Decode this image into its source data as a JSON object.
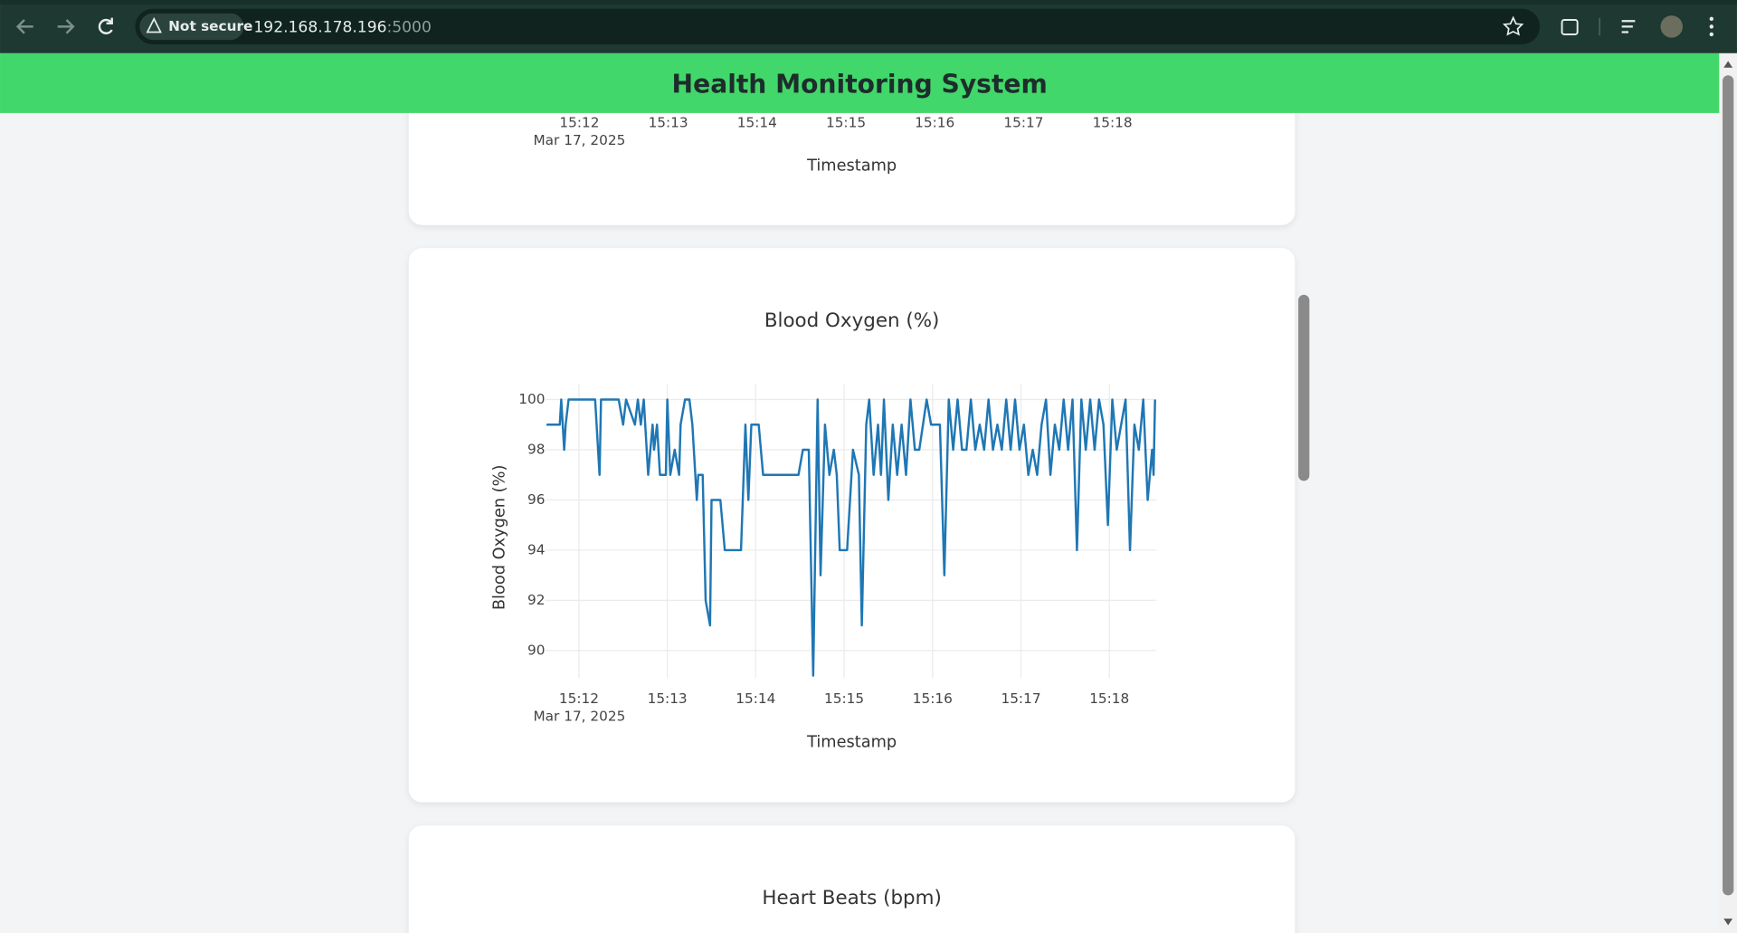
{
  "browser": {
    "security": "Not secure",
    "url_host": "192.168.178.196",
    "url_port": ":5000"
  },
  "header": {
    "title": "Health Monitoring System"
  },
  "previous_chart": {
    "xtick_labels": [
      "15:12",
      "15:13",
      "15:14",
      "15:15",
      "15:16",
      "15:17",
      "15:18"
    ],
    "x_date_label": "Mar 17, 2025",
    "xlabel": "Timestamp"
  },
  "chart_data": {
    "type": "line",
    "title": "Blood Oxygen (%)",
    "xlabel": "Timestamp",
    "ylabel": "Blood Oxygen (%)",
    "color": "#1f77b4",
    "grid": true,
    "x": [
      "2025-03-17 15:11:38",
      "2025-03-17 15:11:47",
      "2025-03-17 15:11:48",
      "2025-03-17 15:11:50",
      "2025-03-17 15:11:51",
      "2025-03-17 15:11:53",
      "2025-03-17 15:12:11",
      "2025-03-17 15:12:14",
      "2025-03-17 15:12:15",
      "2025-03-17 15:12:27",
      "2025-03-17 15:12:30",
      "2025-03-17 15:12:32",
      "2025-03-17 15:12:38",
      "2025-03-17 15:12:40",
      "2025-03-17 15:12:42",
      "2025-03-17 15:12:44",
      "2025-03-17 15:12:47",
      "2025-03-17 15:12:50",
      "2025-03-17 15:12:51",
      "2025-03-17 15:12:53",
      "2025-03-17 15:12:55",
      "2025-03-17 15:12:59",
      "2025-03-17 15:13:00",
      "2025-03-17 15:13:02",
      "2025-03-17 15:13:05",
      "2025-03-17 15:13:08",
      "2025-03-17 15:13:09",
      "2025-03-17 15:13:12",
      "2025-03-17 15:13:15",
      "2025-03-17 15:13:17",
      "2025-03-17 15:13:20",
      "2025-03-17 15:13:21",
      "2025-03-17 15:13:24",
      "2025-03-17 15:13:26",
      "2025-03-17 15:13:29",
      "2025-03-17 15:13:30",
      "2025-03-17 15:13:36",
      "2025-03-17 15:13:39",
      "2025-03-17 15:13:50",
      "2025-03-17 15:13:53",
      "2025-03-17 15:13:55",
      "2025-03-17 15:13:57",
      "2025-03-17 15:14:02",
      "2025-03-17 15:14:05",
      "2025-03-17 15:14:29",
      "2025-03-17 15:14:32",
      "2025-03-17 15:14:36",
      "2025-03-17 15:14:39",
      "2025-03-17 15:14:42",
      "2025-03-17 15:14:44",
      "2025-03-17 15:14:47",
      "2025-03-17 15:14:50",
      "2025-03-17 15:14:53",
      "2025-03-17 15:14:55",
      "2025-03-17 15:14:57",
      "2025-03-17 15:15:02",
      "2025-03-17 15:15:04",
      "2025-03-17 15:15:06",
      "2025-03-17 15:15:10",
      "2025-03-17 15:15:12",
      "2025-03-17 15:15:15",
      "2025-03-17 15:15:17",
      "2025-03-17 15:15:20",
      "2025-03-17 15:15:23",
      "2025-03-17 15:15:25",
      "2025-03-17 15:15:27",
      "2025-03-17 15:15:30",
      "2025-03-17 15:15:33",
      "2025-03-17 15:15:36",
      "2025-03-17 15:15:39",
      "2025-03-17 15:15:42",
      "2025-03-17 15:15:45",
      "2025-03-17 15:15:48",
      "2025-03-17 15:15:51",
      "2025-03-17 15:15:56",
      "2025-03-17 15:15:59",
      "2025-03-17 15:16:05",
      "2025-03-17 15:16:08",
      "2025-03-17 15:16:11",
      "2025-03-17 15:16:14",
      "2025-03-17 15:16:17",
      "2025-03-17 15:16:20",
      "2025-03-17 15:16:23",
      "2025-03-17 15:16:26",
      "2025-03-17 15:16:29",
      "2025-03-17 15:16:32",
      "2025-03-17 15:16:35",
      "2025-03-17 15:16:38",
      "2025-03-17 15:16:41",
      "2025-03-17 15:16:44",
      "2025-03-17 15:16:47",
      "2025-03-17 15:16:50",
      "2025-03-17 15:16:53",
      "2025-03-17 15:16:56",
      "2025-03-17 15:16:59",
      "2025-03-17 15:17:02",
      "2025-03-17 15:17:05",
      "2025-03-17 15:17:08",
      "2025-03-17 15:17:11",
      "2025-03-17 15:17:14",
      "2025-03-17 15:17:17",
      "2025-03-17 15:17:20",
      "2025-03-17 15:17:23",
      "2025-03-17 15:17:26",
      "2025-03-17 15:17:29",
      "2025-03-17 15:17:32",
      "2025-03-17 15:17:35",
      "2025-03-17 15:17:38",
      "2025-03-17 15:17:41",
      "2025-03-17 15:17:44",
      "2025-03-17 15:17:47",
      "2025-03-17 15:17:50",
      "2025-03-17 15:17:53",
      "2025-03-17 15:17:56",
      "2025-03-17 15:17:59",
      "2025-03-17 15:18:02",
      "2025-03-17 15:18:05",
      "2025-03-17 15:18:08",
      "2025-03-17 15:18:11",
      "2025-03-17 15:18:14",
      "2025-03-17 15:18:17",
      "2025-03-17 15:18:20",
      "2025-03-17 15:18:23",
      "2025-03-17 15:18:26",
      "2025-03-17 15:18:29",
      "2025-03-17 15:18:30",
      "2025-03-17 15:18:31"
    ],
    "values": [
      99,
      99,
      100,
      98,
      99,
      100,
      100,
      97,
      100,
      100,
      99,
      100,
      99,
      100,
      99,
      100,
      97,
      99,
      98,
      99,
      97,
      97,
      100,
      97,
      98,
      97,
      99,
      100,
      100,
      99,
      96,
      97,
      97,
      92,
      91,
      96,
      96,
      94,
      94,
      99,
      96,
      99,
      99,
      97,
      97,
      98,
      98,
      89,
      100,
      93,
      99,
      97,
      98,
      97,
      94,
      94,
      96,
      98,
      97,
      91,
      99,
      100,
      97,
      99,
      97,
      100,
      96,
      99,
      97,
      99,
      97,
      100,
      98,
      98,
      100,
      99,
      99,
      93,
      100,
      98,
      100,
      98,
      98,
      100,
      98,
      99,
      98,
      100,
      98,
      99,
      98,
      100,
      98,
      100,
      98,
      99,
      97,
      98,
      97,
      99,
      100,
      97,
      99,
      98,
      100,
      98,
      100,
      94,
      100,
      98,
      100,
      98,
      100,
      99,
      95,
      100,
      98,
      99,
      100,
      94,
      99,
      98,
      100,
      96,
      98,
      97,
      100
    ],
    "xlim": [
      "2025-03-17 15:11:37",
      "2025-03-17 15:18:32"
    ],
    "xticks": [
      {
        "value": "2025-03-17 15:12",
        "label": "15:12"
      },
      {
        "value": "2025-03-17 15:13",
        "label": "15:13"
      },
      {
        "value": "2025-03-17 15:14",
        "label": "15:14"
      },
      {
        "value": "2025-03-17 15:15",
        "label": "15:15"
      },
      {
        "value": "2025-03-17 15:16",
        "label": "15:16"
      },
      {
        "value": "2025-03-17 15:17",
        "label": "15:17"
      },
      {
        "value": "2025-03-17 15:18",
        "label": "15:18"
      }
    ],
    "x_date_label": "Mar 17, 2025",
    "ylim": [
      88.9,
      100.6
    ],
    "yticks": [
      90,
      92,
      94,
      96,
      98,
      100
    ]
  },
  "next_chart": {
    "title": "Heart Beats (bpm)"
  }
}
